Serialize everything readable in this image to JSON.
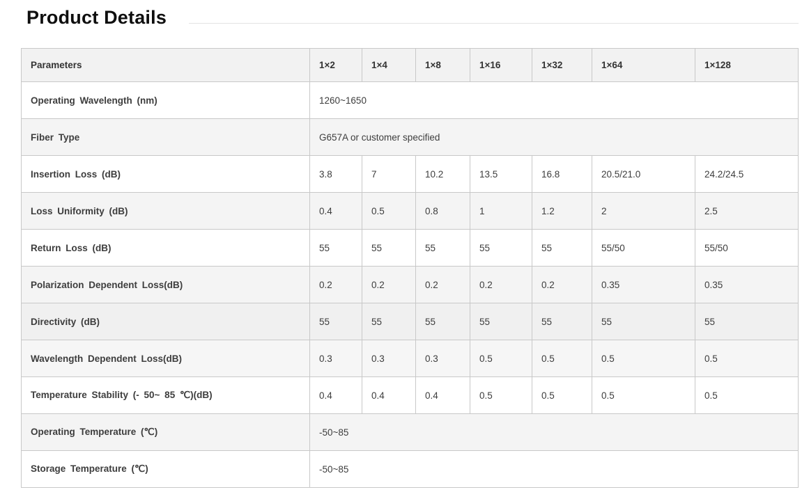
{
  "page": {
    "title": "Product Details"
  },
  "table": {
    "header": {
      "parameters_label": "Parameters",
      "columns": [
        "1×2",
        "1×4",
        "1×8",
        "1×16",
        "1×32",
        "1×64",
        "1×128"
      ]
    },
    "rows": [
      {
        "label": "Operating Wavelength (nm)",
        "span_value": "1260~1650",
        "shade": "white"
      },
      {
        "label": "Fiber Type",
        "span_value": "G657A or customer specified",
        "shade": "gray"
      },
      {
        "label": "Insertion Loss (dB)",
        "values": [
          "3.8",
          "7",
          "10.2",
          "13.5",
          "16.8",
          "20.5/21.0",
          "24.2/24.5"
        ],
        "centered_columns": [
          5,
          6
        ],
        "shade": "white"
      },
      {
        "label": "Loss Uniformity (dB)",
        "values": [
          "0.4",
          "0.5",
          "0.8",
          "1",
          "1.2",
          "2",
          "2.5"
        ],
        "centered_columns": [],
        "shade": "gray"
      },
      {
        "label": "Return Loss (dB)",
        "values": [
          "55",
          "55",
          "55",
          "55",
          "55",
          "55/50",
          "55/50"
        ],
        "centered_columns": [
          5,
          6
        ],
        "shade": "white"
      },
      {
        "label": "Polarization Dependent Loss(dB)",
        "values": [
          "0.2",
          "0.2",
          "0.2",
          "0.2",
          "0.2",
          "0.35",
          "0.35"
        ],
        "centered_columns": [],
        "shade": "gray"
      },
      {
        "label": "Directivity (dB)",
        "values": [
          "55",
          "55",
          "55",
          "55",
          "55",
          "55",
          "55"
        ],
        "centered_columns": [],
        "shade": "gray-dark"
      },
      {
        "label": "Wavelength Dependent Loss(dB)",
        "values": [
          "0.3",
          "0.3",
          "0.3",
          "0.5",
          "0.5",
          "0.5",
          "0.5"
        ],
        "centered_columns": [],
        "shade": "gray-light"
      },
      {
        "label": "Temperature Stability (- 50~ 85 ℃)(dB)",
        "values": [
          "0.4",
          "0.4",
          "0.4",
          "0.5",
          "0.5",
          "0.5",
          "0.5"
        ],
        "centered_columns": [],
        "shade": "white"
      },
      {
        "label": "Operating Temperature (℃)",
        "span_value": "-50~85",
        "shade": "gray"
      },
      {
        "label": "Storage Temperature (℃)",
        "span_value": "-50~85",
        "shade": "white"
      }
    ]
  },
  "colors": {
    "header_bg": "#f2f2f2",
    "row_gray": "#f4f4f4",
    "row_gray_dark": "#f0f0f0",
    "row_gray_light": "#f6f6f6",
    "border": "#c8c8c8",
    "text": "#3d3d3d",
    "label_text": "#333333",
    "title_text": "#0f0f0f",
    "title_rule": "#e3e3e3"
  }
}
